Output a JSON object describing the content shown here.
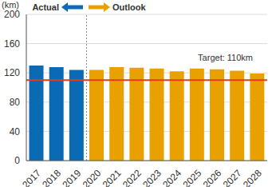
{
  "chart_data": {
    "type": "bar",
    "y_label": "(km)",
    "categories": [
      "2017",
      "2018",
      "2019",
      "2020",
      "2021",
      "2022",
      "2023",
      "2024",
      "2025",
      "2026",
      "2027",
      "2028"
    ],
    "series": [
      {
        "name": "Actual",
        "color": "#0a6ab4",
        "values": [
          130,
          128,
          124,
          null,
          null,
          null,
          null,
          null,
          null,
          null,
          null,
          null
        ]
      },
      {
        "name": "Outlook",
        "color": "#e8a100",
        "values": [
          null,
          null,
          null,
          124,
          128,
          127,
          126,
          122,
          126,
          125,
          123,
          119
        ]
      }
    ],
    "stacked": true,
    "ylim": [
      0,
      200
    ],
    "yticks": [
      0,
      40,
      80,
      120,
      160,
      200
    ],
    "grid": true,
    "target": {
      "value": 110,
      "label": "Target: 110km",
      "color": "#e03c1f"
    }
  }
}
